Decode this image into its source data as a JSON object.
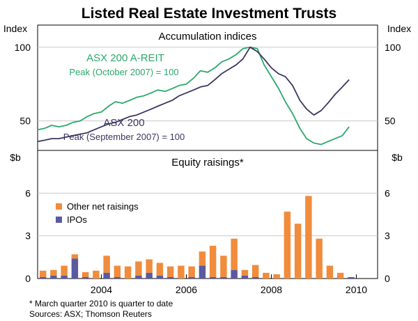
{
  "figure": {
    "title": "Listed Real Estate Investment Trusts",
    "footnote": "*   March quarter 2010 is quarter to date",
    "sources": "Sources: ASX; Thomson Reuters"
  },
  "colors": {
    "reit": "#2aa86a",
    "asx": "#3a3560",
    "other": "#f08c3c",
    "ipo": "#5a5aa0",
    "axis": "#000000",
    "grid": "#c8c8c8"
  },
  "chart_data": [
    {
      "type": "line",
      "title": "Accumulation indices",
      "ylabel_left": "Index",
      "ylabel_right": "Index",
      "ylim": [
        30,
        115
      ],
      "yticks": [
        50,
        100
      ],
      "xlim": [
        2002.5,
        2010.5
      ],
      "xticks": [
        2004,
        2006,
        2008,
        2010
      ],
      "series": [
        {
          "name": "ASX 200 A-REIT",
          "note": "Peak (October 2007) = 100",
          "x": [
            2002.5,
            2002.67,
            2002.83,
            2003.0,
            2003.17,
            2003.33,
            2003.5,
            2003.67,
            2003.83,
            2004.0,
            2004.17,
            2004.33,
            2004.5,
            2004.67,
            2004.83,
            2005.0,
            2005.17,
            2005.33,
            2005.5,
            2005.67,
            2005.83,
            2006.0,
            2006.17,
            2006.33,
            2006.5,
            2006.67,
            2006.83,
            2007.0,
            2007.17,
            2007.33,
            2007.5,
            2007.67,
            2007.83,
            2008.0,
            2008.17,
            2008.33,
            2008.5,
            2008.67,
            2008.83,
            2009.0,
            2009.17,
            2009.33,
            2009.5,
            2009.67,
            2009.83
          ],
          "y": [
            44,
            45,
            47,
            46,
            47,
            49,
            50,
            53,
            55,
            56,
            60,
            63,
            62,
            64,
            66,
            67,
            69,
            71,
            70,
            72,
            74,
            75,
            79,
            84,
            83,
            86,
            90,
            92,
            95,
            99,
            100,
            99,
            88,
            80,
            72,
            63,
            55,
            45,
            38,
            35,
            34,
            36,
            38,
            40,
            46
          ]
        },
        {
          "name": "ASX 200",
          "note": "Peak (September 2007) = 100",
          "x": [
            2002.5,
            2002.67,
            2002.83,
            2003.0,
            2003.17,
            2003.33,
            2003.5,
            2003.67,
            2003.83,
            2004.0,
            2004.17,
            2004.33,
            2004.5,
            2004.67,
            2004.83,
            2005.0,
            2005.17,
            2005.33,
            2005.5,
            2005.67,
            2005.83,
            2006.0,
            2006.17,
            2006.33,
            2006.5,
            2006.67,
            2006.83,
            2007.0,
            2007.17,
            2007.33,
            2007.5,
            2007.67,
            2007.83,
            2008.0,
            2008.17,
            2008.33,
            2008.5,
            2008.67,
            2008.83,
            2009.0,
            2009.17,
            2009.33,
            2009.5,
            2009.67,
            2009.83
          ],
          "y": [
            36,
            37,
            38,
            38,
            39,
            40,
            41,
            42,
            44,
            46,
            48,
            49,
            51,
            53,
            54,
            56,
            58,
            60,
            62,
            64,
            67,
            69,
            71,
            73,
            74,
            78,
            82,
            85,
            88,
            92,
            100,
            97,
            92,
            86,
            82,
            80,
            74,
            64,
            58,
            54,
            57,
            62,
            68,
            73,
            78
          ]
        }
      ]
    },
    {
      "type": "bar",
      "stacked": true,
      "title": "Equity raisings*",
      "ylabel_left": "$b",
      "ylabel_right": "$b",
      "ylim": [
        0,
        9
      ],
      "yticks": [
        0,
        3,
        6
      ],
      "xlim": [
        2002.5,
        2010.5
      ],
      "xticks": [
        2004,
        2006,
        2008,
        2010
      ],
      "x": [
        2002.625,
        2002.875,
        2003.125,
        2003.375,
        2003.625,
        2003.875,
        2004.125,
        2004.375,
        2004.625,
        2004.875,
        2005.125,
        2005.375,
        2005.625,
        2005.875,
        2006.125,
        2006.375,
        2006.625,
        2006.875,
        2007.125,
        2007.375,
        2007.625,
        2007.875,
        2008.125,
        2008.375,
        2008.625,
        2008.875,
        2009.125,
        2009.375,
        2009.625,
        2009.875,
        2010.125
      ],
      "series": [
        {
          "name": "IPOs",
          "values": [
            0.1,
            0.2,
            0.2,
            1.4,
            0.1,
            0.0,
            0.4,
            0.1,
            0.0,
            0.2,
            0.4,
            0.2,
            0.1,
            0.0,
            0.1,
            0.9,
            0.1,
            0.1,
            0.6,
            0.2,
            0.1,
            0.0,
            0.0,
            0.0,
            0.0,
            0.0,
            0.0,
            0.0,
            0.0,
            0.1,
            0.0
          ]
        },
        {
          "name": "Other net raisings",
          "values": [
            0.45,
            0.4,
            0.7,
            0.3,
            0.35,
            0.55,
            1.2,
            0.8,
            0.85,
            1.0,
            0.95,
            0.9,
            0.75,
            0.9,
            0.75,
            1.0,
            2.2,
            1.5,
            2.2,
            0.4,
            0.85,
            0.4,
            0.3,
            4.7,
            3.85,
            5.8,
            2.8,
            0.9,
            0.4,
            0.0,
            0.0
          ]
        }
      ]
    }
  ]
}
